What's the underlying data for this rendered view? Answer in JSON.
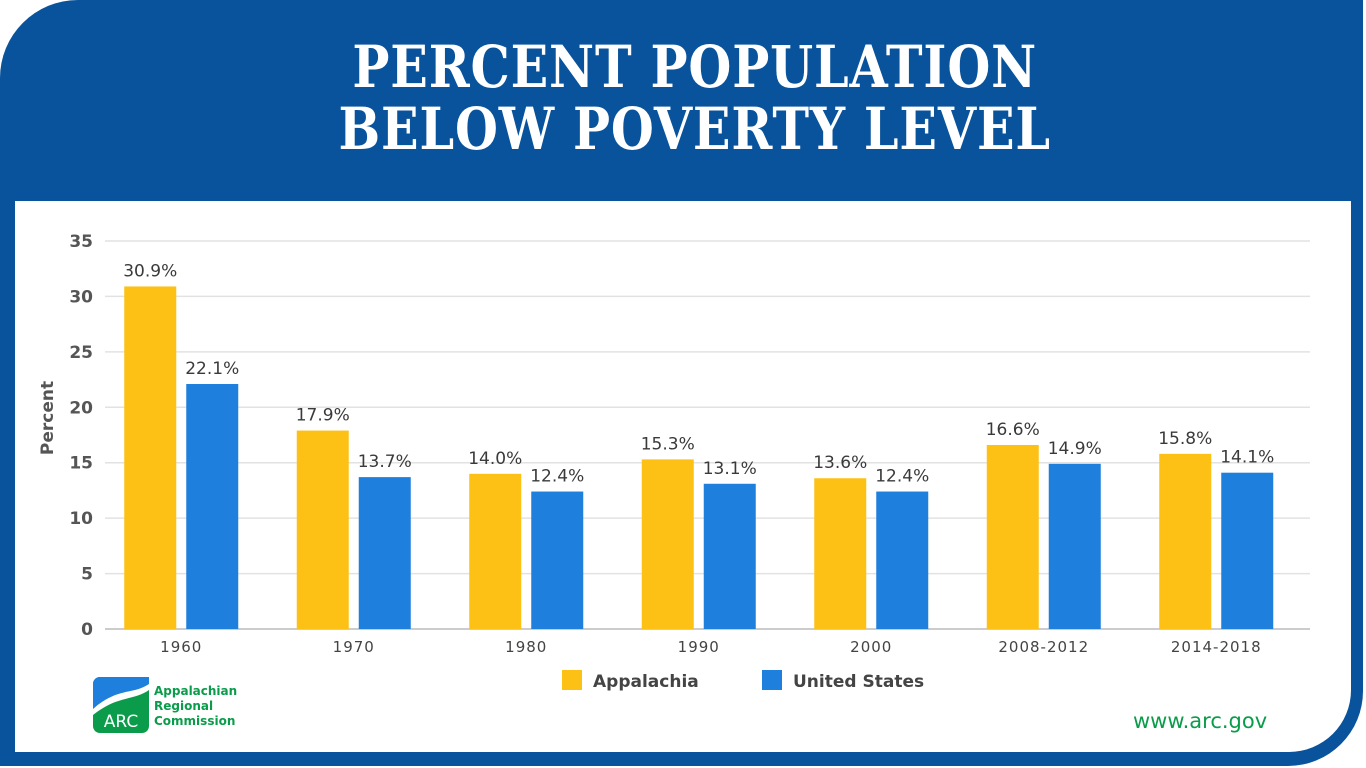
{
  "chart_data": {
    "type": "bar",
    "title": "PERCENT POPULATION BELOW POVERTY LEVEL",
    "title_lines": [
      "PERCENT POPULATION",
      "BELOW POVERTY LEVEL"
    ],
    "xlabel": "",
    "ylabel": "Percent",
    "ylim": [
      0,
      35
    ],
    "yticks": [
      0,
      5,
      10,
      15,
      20,
      25,
      30,
      35
    ],
    "grid": true,
    "legend": "bottom",
    "categories": [
      "1960",
      "1970",
      "1980",
      "1990",
      "2000",
      "2008-2012",
      "2014-2018"
    ],
    "series": [
      {
        "name": "Appalachia",
        "color": "#fdc116",
        "values": [
          30.9,
          17.9,
          14.0,
          15.3,
          13.6,
          16.6,
          15.8
        ],
        "labels": [
          "30.9%",
          "17.9%",
          "14.0%",
          "15.3%",
          "13.6%",
          "16.6%",
          "15.8%"
        ]
      },
      {
        "name": "United States",
        "color": "#1f7fdd",
        "values": [
          22.1,
          13.7,
          12.4,
          13.1,
          12.4,
          14.9,
          14.1
        ],
        "labels": [
          "22.1%",
          "13.7%",
          "12.4%",
          "13.1%",
          "12.4%",
          "14.9%",
          "14.1%"
        ]
      }
    ]
  },
  "frame_color": "#08539c",
  "logo": {
    "abbr": "ARC",
    "name_lines": [
      "Appalachian",
      "Regional",
      "Commission"
    ]
  },
  "footer": {
    "url": "www.arc.gov"
  }
}
